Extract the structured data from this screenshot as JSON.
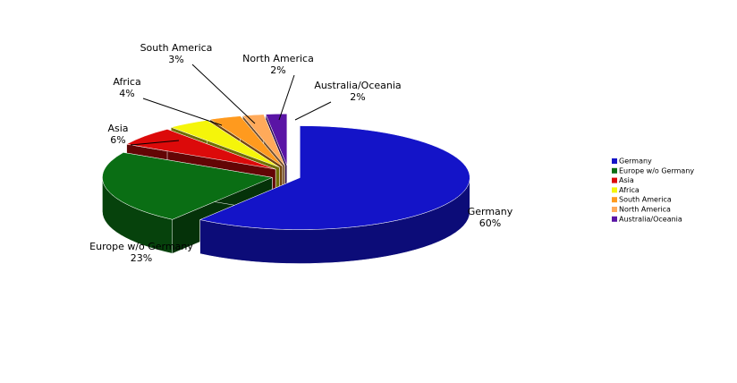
{
  "chart_data": {
    "type": "pie",
    "categories": [
      "Germany",
      "Europe w/o Germany",
      "Asia",
      "Africa",
      "South America",
      "North America",
      "Australia/Oceania"
    ],
    "values": [
      60,
      23,
      6,
      4,
      3,
      2,
      2
    ],
    "value_labels": [
      "60%",
      "23%",
      "6%",
      "4%",
      "3%",
      "2%",
      "2%"
    ],
    "colors": [
      "#1414c8",
      "#0a6e14",
      "#dc0a0a",
      "#f5f50a",
      "#ff9a1e",
      "#ffaa5a",
      "#5a14a5"
    ],
    "legend": "right"
  }
}
